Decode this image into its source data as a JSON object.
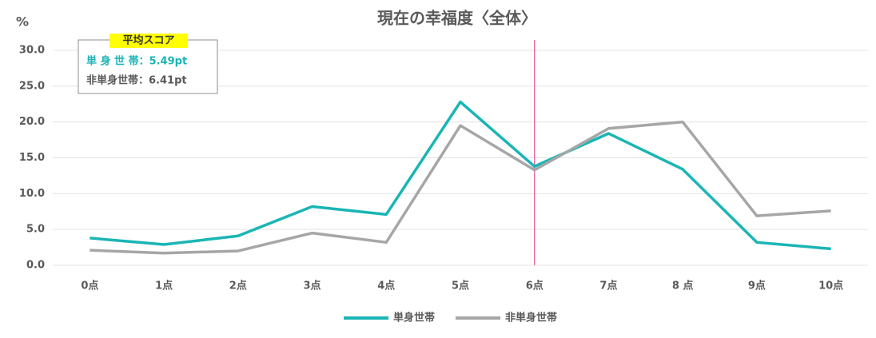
{
  "chart_data": {
    "type": "line",
    "title": "現在の幸福度〈全体〉",
    "y_label": "%",
    "categories": [
      "0点",
      "1点",
      "2点",
      "3点",
      "4点",
      "5点",
      "6点",
      "7点",
      "8 点",
      "9点",
      "10点"
    ],
    "series": [
      {
        "name": "単身世帯",
        "color": "#1ab5b5",
        "values": [
          3.8,
          2.9,
          4.1,
          8.2,
          7.1,
          22.8,
          13.8,
          18.4,
          13.4,
          3.2,
          2.3
        ]
      },
      {
        "name": "非単身世帯",
        "color": "#a6a6a6",
        "values": [
          2.1,
          1.7,
          2.0,
          4.5,
          3.2,
          19.5,
          13.3,
          19.1,
          20.0,
          6.9,
          7.6
        ]
      }
    ],
    "ylim": [
      0,
      30
    ],
    "yticks": [
      {
        "value": 0,
        "label": "0.0"
      },
      {
        "value": 5,
        "label": "5.0"
      },
      {
        "value": 10,
        "label": "10.0"
      },
      {
        "value": 15,
        "label": "15.0"
      },
      {
        "value": 20,
        "label": "20.0"
      },
      {
        "value": 25,
        "label": "25.0"
      },
      {
        "value": 30,
        "label": "30.0"
      }
    ],
    "grid": true,
    "reference_line": {
      "category_index": 6,
      "color": "#e0569a"
    },
    "annotation": {
      "title": "平均スコア",
      "lines": [
        "単 身 世 帯：5.49pt",
        "非単身世帯：6.41pt"
      ]
    },
    "legend": "bottom"
  }
}
